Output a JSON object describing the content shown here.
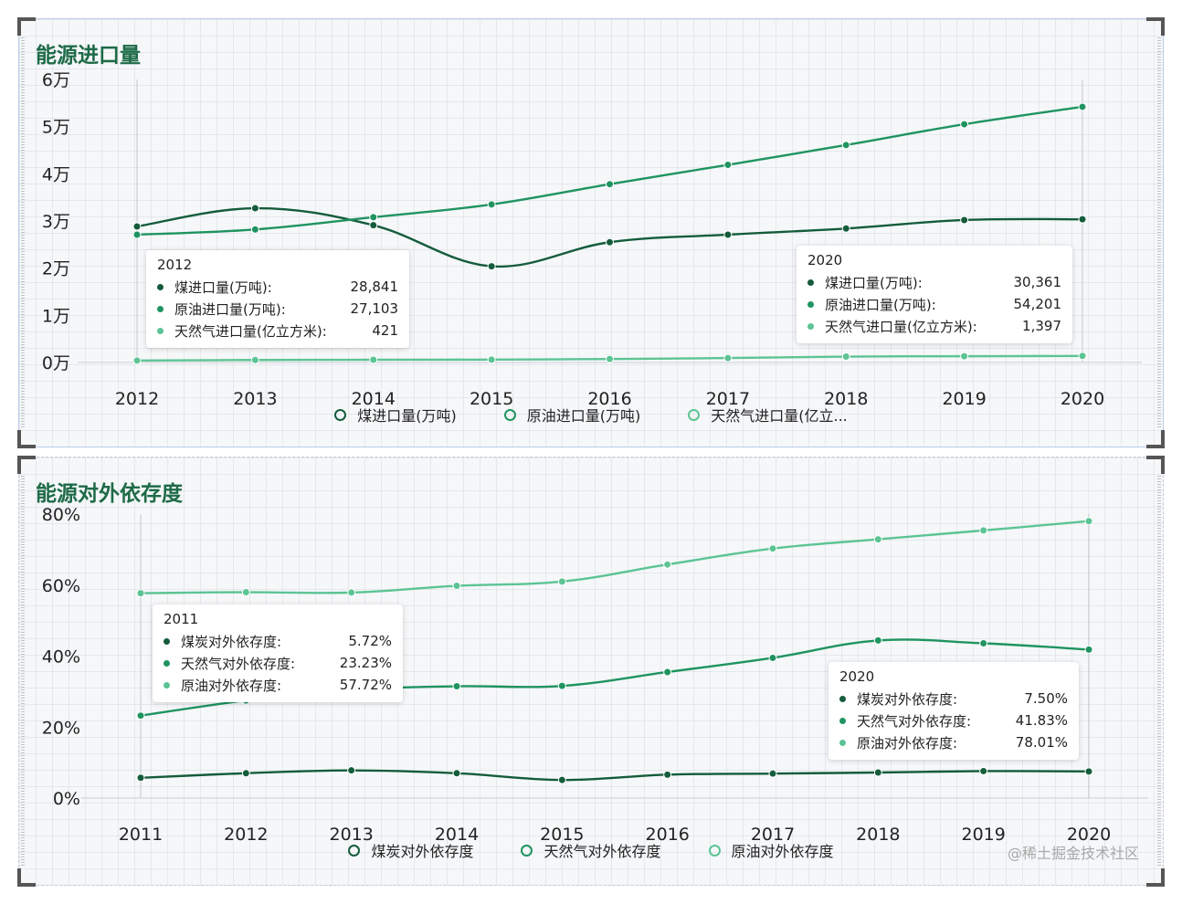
{
  "watermark": "@稀土掘金技术社区",
  "chart_data": [
    {
      "type": "line",
      "title": "能源进口量",
      "x": [
        "2012",
        "2013",
        "2014",
        "2015",
        "2016",
        "2017",
        "2018",
        "2019",
        "2020"
      ],
      "y_ticks": [
        "0万",
        "1万",
        "2万",
        "3万",
        "4万",
        "5万",
        "6万"
      ],
      "ylim": [
        0,
        60000
      ],
      "grid": false,
      "legend_position": "bottom",
      "series": [
        {
          "name": "煤进口量(万吨)",
          "legend_label": "煤进口量(万吨)",
          "color": "#145c3b",
          "values": [
            28841,
            32700,
            29100,
            20400,
            25500,
            27100,
            28400,
            30200,
            30361
          ]
        },
        {
          "name": "原油进口量(万吨)",
          "legend_label": "原油进口量(万吨)",
          "color": "#1f9460",
          "values": [
            27103,
            28200,
            30800,
            33500,
            37800,
            41900,
            46100,
            50500,
            54201
          ]
        },
        {
          "name": "天然气进口量(亿立方米)",
          "legend_label": "天然气进口量(亿立...",
          "color": "#5cc494",
          "values": [
            421,
            530,
            584,
            611,
            746,
            946,
            1254,
            1332,
            1397
          ]
        }
      ],
      "tooltips": [
        {
          "title": "2012",
          "rows": [
            {
              "label": "煤进口量(万吨):",
              "value": "28,841",
              "color": "#145c3b"
            },
            {
              "label": "原油进口量(万吨):",
              "value": "27,103",
              "color": "#1f9460"
            },
            {
              "label": "天然气进口量(亿立方米):",
              "value": "421",
              "color": "#5cc494"
            }
          ]
        },
        {
          "title": "2020",
          "rows": [
            {
              "label": "煤进口量(万吨):",
              "value": "30,361",
              "color": "#145c3b"
            },
            {
              "label": "原油进口量(万吨):",
              "value": "54,201",
              "color": "#1f9460"
            },
            {
              "label": "天然气进口量(亿立方米):",
              "value": "1,397",
              "color": "#5cc494"
            }
          ]
        }
      ]
    },
    {
      "type": "line",
      "title": "能源对外依存度",
      "x": [
        "2011",
        "2012",
        "2013",
        "2014",
        "2015",
        "2016",
        "2017",
        "2018",
        "2019",
        "2020"
      ],
      "y_ticks": [
        "0%",
        "20%",
        "40%",
        "60%",
        "80%"
      ],
      "ylim": [
        0,
        80
      ],
      "grid": false,
      "legend_position": "bottom",
      "series": [
        {
          "name": "煤炭对外依存度",
          "legend_label": "煤炭对外依存度",
          "color": "#145c3b",
          "values": [
            5.72,
            7.0,
            7.8,
            7.0,
            5.1,
            6.6,
            6.9,
            7.2,
            7.6,
            7.5
          ]
        },
        {
          "name": "天然气对外依存度",
          "legend_label": "天然气对外依存度",
          "color": "#1f9460",
          "values": [
            23.23,
            27.5,
            30.5,
            31.5,
            31.6,
            35.5,
            39.5,
            44.4,
            43.6,
            41.83
          ]
        },
        {
          "name": "原油对外依存度",
          "legend_label": "原油对外依存度",
          "color": "#5cc494",
          "values": [
            57.72,
            58.0,
            57.9,
            59.8,
            61.0,
            65.8,
            70.3,
            72.9,
            75.4,
            78.01
          ]
        }
      ],
      "tooltips": [
        {
          "title": "2011",
          "rows": [
            {
              "label": "煤炭对外依存度:",
              "value": "5.72%",
              "color": "#145c3b"
            },
            {
              "label": "天然气对外依存度:",
              "value": "23.23%",
              "color": "#1f9460"
            },
            {
              "label": "原油对外依存度:",
              "value": "57.72%",
              "color": "#5cc494"
            }
          ]
        },
        {
          "title": "2020",
          "rows": [
            {
              "label": "煤炭对外依存度:",
              "value": "7.50%",
              "color": "#145c3b"
            },
            {
              "label": "天然气对外依存度:",
              "value": "41.83%",
              "color": "#1f9460"
            },
            {
              "label": "原油对外依存度:",
              "value": "78.01%",
              "color": "#5cc494"
            }
          ]
        }
      ]
    }
  ]
}
